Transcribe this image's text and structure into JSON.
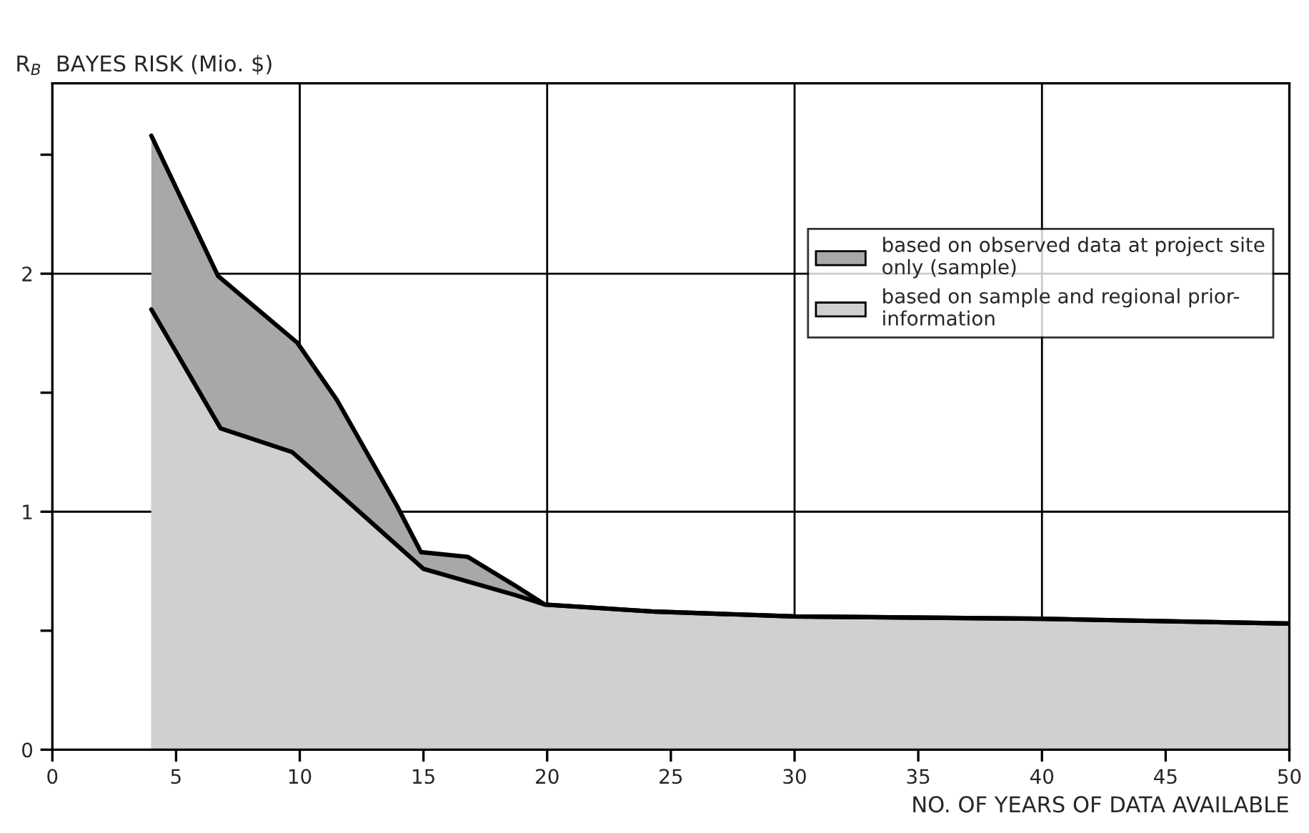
{
  "chart_data": {
    "type": "area",
    "title": "R$_{B}$  BAYES RISK (Mio. $)",
    "xlabel": "NO. OF YEARS OF DATA AVAILABLE",
    "series": [
      {
        "name": "based on observed data at project site\nonly (sample)",
        "color": "#a8a8a8",
        "x": [
          4,
          6.7,
          9.9,
          11.5,
          13.9,
          14.9,
          16.8,
          18.7,
          19.9,
          24.4,
          30,
          40,
          50
        ],
        "values": [
          2.58,
          1.99,
          1.71,
          1.47,
          1.03,
          0.83,
          0.81,
          0.69,
          0.61,
          0.58,
          0.56,
          0.55,
          0.53
        ]
      },
      {
        "name": "based on sample and regional prior-\ninformation",
        "color": "#d0d0d0",
        "x": [
          4,
          6.8,
          9.7,
          15,
          18.7,
          19.9,
          24.4,
          30,
          40,
          50
        ],
        "values": [
          1.85,
          1.35,
          1.25,
          0.76,
          0.65,
          0.61,
          0.58,
          0.56,
          0.55,
          0.53
        ]
      }
    ],
    "xlim": [
      0,
      50
    ],
    "xticks": [
      0,
      5,
      10,
      15,
      20,
      25,
      30,
      35,
      40,
      45,
      50
    ],
    "ylim": [
      0,
      2.8
    ],
    "yticks": [
      0,
      {
        "value": 0.5,
        "label": null
      },
      1,
      {
        "value": 1.5,
        "label": null
      },
      2,
      {
        "value": 2.5,
        "label": null
      }
    ],
    "ref_lines": [
      {
        "axis": "x",
        "value": 10
      },
      {
        "axis": "x",
        "value": 20
      },
      {
        "axis": "x",
        "value": 30
      },
      {
        "axis": "x",
        "value": 40
      },
      {
        "axis": "y",
        "value": 1
      },
      {
        "axis": "y",
        "value": 2
      }
    ],
    "legend": "right",
    "grid": false
  }
}
